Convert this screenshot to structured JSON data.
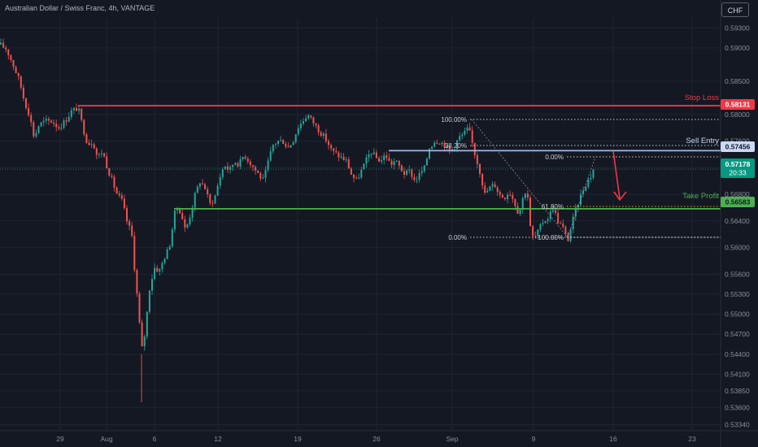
{
  "header": {
    "title": "Australian Dollar / Swiss Franc, 4h, VANTAGE",
    "currency_button": "CHF"
  },
  "colors": {
    "background": "#141823",
    "up_candle": "#26a69a",
    "down_candle": "#ef5350",
    "stop_loss": "#f23645",
    "sell_entry": "#9fb8e6",
    "take_profit": "#4caf50",
    "current_price": "#089981"
  },
  "annotations": {
    "stop_loss": {
      "label": "Stop Loss",
      "price_tag": "0.58131"
    },
    "sell_entry": {
      "label": "Sell Entry",
      "price_tag": "0.57456"
    },
    "take_profit": {
      "label": "Take Profit",
      "price_tag": "0.56583"
    },
    "current_price": {
      "price_tag": "0.57178",
      "countdown": "20:33"
    }
  },
  "fib_labels": {
    "fib1_top": "100.00%",
    "fib1_mid": "38.20%",
    "fib1_bottom": "0.00%",
    "fib2_top": "0.00%",
    "fib2_mid": "61.80%",
    "fib2_bottom": "100.00%"
  },
  "chart_data": {
    "type": "candlestick",
    "symbol": "Australian Dollar / Swiss Franc",
    "interval": "4h",
    "broker": "VANTAGE",
    "y_axis_ticks": [
      "0.59300",
      "0.59000",
      "0.58500",
      "0.58000",
      "0.57600",
      "0.57200",
      "0.56800",
      "0.56400",
      "0.56000",
      "0.55600",
      "0.55300",
      "0.55000",
      "0.54700",
      "0.54400",
      "0.54100",
      "0.53850",
      "0.53600",
      "0.53340"
    ],
    "x_axis_ticks": [
      "29",
      "Aug",
      "6",
      "12",
      "19",
      "26",
      "Sep",
      "9",
      "16",
      "23"
    ],
    "ylim": [
      0.5325,
      0.5945
    ],
    "levels": {
      "stop_loss": 0.58131,
      "sell_entry": 0.57456,
      "take_profit": 0.56583,
      "current_price": 0.57178
    },
    "path": [
      [
        0,
        0.5905
      ],
      [
        8,
        0.5898
      ],
      [
        16,
        0.5875
      ],
      [
        24,
        0.585
      ],
      [
        30,
        0.582
      ],
      [
        36,
        0.58
      ],
      [
        42,
        0.5765
      ],
      [
        48,
        0.5785
      ],
      [
        56,
        0.579
      ],
      [
        64,
        0.579
      ],
      [
        72,
        0.578
      ],
      [
        80,
        0.579
      ],
      [
        88,
        0.5805
      ],
      [
        96,
        0.581
      ],
      [
        102,
        0.578
      ],
      [
        108,
        0.5755
      ],
      [
        114,
        0.576
      ],
      [
        120,
        0.5735
      ],
      [
        126,
        0.5745
      ],
      [
        132,
        0.572
      ],
      [
        138,
        0.57
      ],
      [
        144,
        0.568
      ],
      [
        150,
        0.567
      ],
      [
        156,
        0.564
      ],
      [
        162,
        0.562
      ],
      [
        166,
        0.556
      ],
      [
        170,
        0.551
      ],
      [
        174,
        0.5445
      ],
      [
        178,
        0.547
      ],
      [
        184,
        0.554
      ],
      [
        190,
        0.557
      ],
      [
        196,
        0.5565
      ],
      [
        202,
        0.5585
      ],
      [
        208,
        0.56
      ],
      [
        212,
        0.563
      ],
      [
        216,
        0.566
      ],
      [
        222,
        0.5655
      ],
      [
        228,
        0.5625
      ],
      [
        234,
        0.565
      ],
      [
        240,
        0.568
      ],
      [
        246,
        0.57
      ],
      [
        252,
        0.569
      ],
      [
        258,
        0.5665
      ],
      [
        264,
        0.5675
      ],
      [
        270,
        0.5705
      ],
      [
        276,
        0.5725
      ],
      [
        282,
        0.5715
      ],
      [
        288,
        0.573
      ],
      [
        294,
        0.5725
      ],
      [
        300,
        0.574
      ],
      [
        306,
        0.573
      ],
      [
        312,
        0.572
      ],
      [
        318,
        0.571
      ],
      [
        324,
        0.57
      ],
      [
        330,
        0.573
      ],
      [
        336,
        0.5755
      ],
      [
        342,
        0.576
      ],
      [
        348,
        0.576
      ],
      [
        354,
        0.575
      ],
      [
        360,
        0.576
      ],
      [
        366,
        0.578
      ],
      [
        372,
        0.579
      ],
      [
        378,
        0.58
      ],
      [
        384,
        0.579
      ],
      [
        390,
        0.578
      ],
      [
        396,
        0.577
      ],
      [
        402,
        0.576
      ],
      [
        408,
        0.5745
      ],
      [
        414,
        0.574
      ],
      [
        420,
        0.5735
      ],
      [
        426,
        0.573
      ],
      [
        432,
        0.571
      ],
      [
        438,
        0.57
      ],
      [
        444,
        0.5715
      ],
      [
        450,
        0.573
      ],
      [
        456,
        0.5745
      ],
      [
        462,
        0.5735
      ],
      [
        468,
        0.573
      ],
      [
        474,
        0.574
      ],
      [
        480,
        0.5725
      ],
      [
        486,
        0.573
      ],
      [
        492,
        0.572
      ],
      [
        498,
        0.571
      ],
      [
        504,
        0.5715
      ],
      [
        510,
        0.57
      ],
      [
        516,
        0.571
      ],
      [
        522,
        0.572
      ],
      [
        528,
        0.575
      ],
      [
        534,
        0.576
      ],
      [
        540,
        0.576
      ],
      [
        546,
        0.5755
      ],
      [
        552,
        0.5745
      ],
      [
        558,
        0.575
      ],
      [
        564,
        0.5765
      ],
      [
        570,
        0.577
      ],
      [
        576,
        0.578
      ],
      [
        580,
        0.576
      ],
      [
        584,
        0.574
      ],
      [
        590,
        0.5715
      ],
      [
        596,
        0.568
      ],
      [
        602,
        0.569
      ],
      [
        608,
        0.5695
      ],
      [
        614,
        0.568
      ],
      [
        620,
        0.5675
      ],
      [
        626,
        0.5685
      ],
      [
        632,
        0.567
      ],
      [
        638,
        0.565
      ],
      [
        644,
        0.568
      ],
      [
        648,
        0.569
      ],
      [
        652,
        0.563
      ],
      [
        656,
        0.5612
      ],
      [
        662,
        0.5625
      ],
      [
        668,
        0.564
      ],
      [
        674,
        0.5645
      ],
      [
        680,
        0.566
      ],
      [
        686,
        0.564
      ],
      [
        692,
        0.563
      ],
      [
        698,
        0.561
      ],
      [
        704,
        0.564
      ],
      [
        710,
        0.5665
      ],
      [
        716,
        0.5685
      ],
      [
        722,
        0.57
      ],
      [
        728,
        0.571
      ],
      [
        732,
        0.5712
      ]
    ]
  }
}
